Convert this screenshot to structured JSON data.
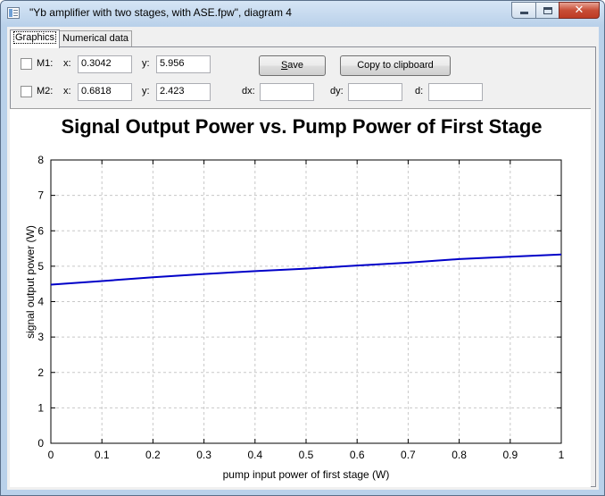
{
  "window": {
    "title": "\"Yb amplifier with two stages, with ASE.fpw\", diagram 4"
  },
  "tabs": [
    {
      "label": "Graphics",
      "active": true
    },
    {
      "label": "Numerical data",
      "active": false
    }
  ],
  "markers": {
    "m1": {
      "label": "M1:",
      "x_label": "x:",
      "x_value": "0.3042",
      "y_label": "y:",
      "y_value": "5.956",
      "checked": false
    },
    "m2": {
      "label": "M2:",
      "x_label": "x:",
      "x_value": "0.6818",
      "y_label": "y:",
      "y_value": "2.423",
      "checked": false
    },
    "dx_label": "dx:",
    "dx_value": "",
    "dy_label": "dy:",
    "dy_value": "",
    "d_label": "d:",
    "d_value": ""
  },
  "buttons": {
    "save_label": "Save",
    "save_mnemonic": "S",
    "save_rest": "ave",
    "copy_label": "Copy to clipboard"
  },
  "chart_data": {
    "type": "line",
    "title": "Signal Output Power vs. Pump Power of First Stage",
    "xlabel": "pump input power of first stage (W)",
    "ylabel": "signal output power (W)",
    "xlim": [
      0,
      1
    ],
    "ylim": [
      0,
      8
    ],
    "xticks": [
      "0",
      "0.1",
      "0.2",
      "0.3",
      "0.4",
      "0.5",
      "0.6",
      "0.7",
      "0.8",
      "0.9",
      "1"
    ],
    "yticks": [
      "0",
      "1",
      "2",
      "3",
      "4",
      "5",
      "6",
      "7",
      "8"
    ],
    "grid": true,
    "series": [
      {
        "color": "#0000c8",
        "x": [
          0,
          0.1,
          0.2,
          0.3,
          0.4,
          0.5,
          0.6,
          0.7,
          0.8,
          0.9,
          1.0
        ],
        "y": [
          4.48,
          4.58,
          4.69,
          4.78,
          4.86,
          4.93,
          5.02,
          5.1,
          5.2,
          5.27,
          5.33
        ]
      }
    ]
  }
}
